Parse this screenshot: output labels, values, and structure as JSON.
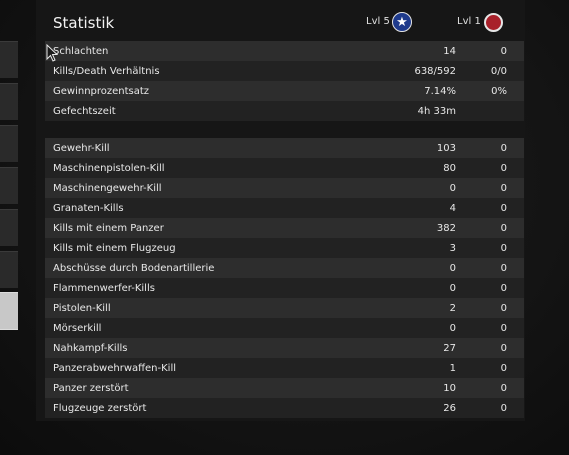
{
  "header": {
    "title": "Statistik",
    "player_left_level": "Lvl 5",
    "player_right_level": "Lvl 1",
    "badge_left_icon": "star-icon",
    "badge_right_icon": "red-circle-icon",
    "badge_left_color": "#1e3a8c",
    "badge_right_color": "#a8202a"
  },
  "summary_stats": [
    {
      "label": "Schlachten",
      "left": "14",
      "right": "0"
    },
    {
      "label": "Kills/Death Verhältnis",
      "left": "638/592",
      "right": "0/0"
    },
    {
      "label": "Gewinnprozentsatz",
      "left": "7.14%",
      "right": "0%"
    },
    {
      "label": "Gefechtszeit",
      "left": "4h 33m",
      "right": ""
    }
  ],
  "kill_stats": [
    {
      "label": "Gewehr-Kill",
      "left": "103",
      "right": "0"
    },
    {
      "label": "Maschinenpistolen-Kill",
      "left": "80",
      "right": "0"
    },
    {
      "label": "Maschinengewehr-Kill",
      "left": "0",
      "right": "0"
    },
    {
      "label": "Granaten-Kills",
      "left": "4",
      "right": "0"
    },
    {
      "label": "Kills mit einem Panzer",
      "left": "382",
      "right": "0"
    },
    {
      "label": "Kills mit einem Flugzeug",
      "left": "3",
      "right": "0"
    },
    {
      "label": "Abschüsse durch Bodenartillerie",
      "left": "0",
      "right": "0"
    },
    {
      "label": "Flammenwerfer-Kills",
      "left": "0",
      "right": "0"
    },
    {
      "label": "Pistolen-Kill",
      "left": "2",
      "right": "0"
    },
    {
      "label": "Mörserkill",
      "left": "0",
      "right": "0"
    },
    {
      "label": "Nahkampf-Kills",
      "left": "27",
      "right": "0"
    },
    {
      "label": "Panzerabwehrwaffen-Kill",
      "left": "1",
      "right": "0"
    },
    {
      "label": "Panzer zerstört",
      "left": "10",
      "right": "0"
    },
    {
      "label": "Flugzeuge zerstört",
      "left": "26",
      "right": "0"
    }
  ]
}
